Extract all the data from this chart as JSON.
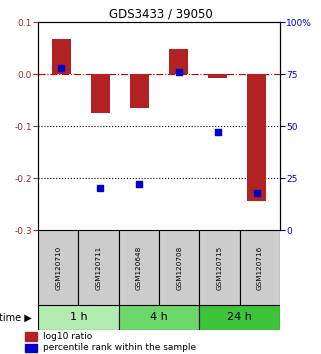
{
  "title": "GDS3433 / 39050",
  "samples": [
    "GSM120710",
    "GSM120711",
    "GSM120648",
    "GSM120708",
    "GSM120715",
    "GSM120716"
  ],
  "log10_ratio": [
    0.068,
    -0.075,
    -0.065,
    0.048,
    -0.008,
    -0.245
  ],
  "percentile_rank": [
    78,
    20,
    22,
    76,
    47,
    18
  ],
  "groups": [
    {
      "label": "1 h",
      "indices": [
        0,
        1
      ],
      "color": "#b3ecb0"
    },
    {
      "label": "4 h",
      "indices": [
        2,
        3
      ],
      "color": "#6dd96a"
    },
    {
      "label": "24 h",
      "indices": [
        4,
        5
      ],
      "color": "#3ec43a"
    }
  ],
  "ylim_left": [
    -0.3,
    0.1
  ],
  "ylim_right": [
    0,
    100
  ],
  "yticks_left": [
    -0.3,
    -0.2,
    -0.1,
    0.0,
    0.1
  ],
  "yticks_right": [
    0,
    25,
    50,
    75,
    100
  ],
  "ytick_labels_right": [
    "0",
    "25",
    "50",
    "75",
    "100%"
  ],
  "bar_color": "#b22222",
  "dot_color": "#0000cc",
  "hline_color": "#cc0000",
  "dotted_line_color": "#000000",
  "bg_color": "#ffffff",
  "sample_box_color": "#cccccc",
  "bar_width": 0.5
}
